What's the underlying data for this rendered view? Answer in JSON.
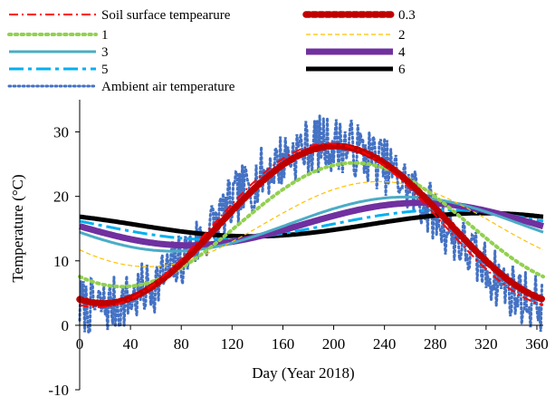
{
  "chart_data": {
    "type": "line",
    "xlabel": "Day (Year 2018)",
    "ylabel": "Temperature (°C)",
    "xlim": [
      0,
      365
    ],
    "ylim": [
      -10,
      35
    ],
    "x_ticks": [
      0,
      40,
      80,
      120,
      160,
      200,
      240,
      280,
      320,
      360
    ],
    "y_ticks": [
      -10,
      0,
      10,
      20,
      30
    ],
    "grid": false,
    "legend_position": "top",
    "series": [
      {
        "name": "Soil surface tempearure",
        "mean": 15.5,
        "amplitude": 12.7,
        "peak_day": 196,
        "color": "#ff0000",
        "style": "dashdot",
        "width": 2.0
      },
      {
        "name": "0.3",
        "mean": 15.6,
        "amplitude": 12.2,
        "peak_day": 201,
        "color": "#c00000",
        "style": "dotted-thick",
        "width": 7.5
      },
      {
        "name": "1",
        "mean": 15.6,
        "amplitude": 9.6,
        "peak_day": 216,
        "color": "#92d050",
        "style": "dotted",
        "width": 4.0
      },
      {
        "name": "2",
        "mean": 15.7,
        "amplitude": 6.6,
        "peak_day": 236,
        "color": "#ffc000",
        "style": "dashed",
        "width": 1.2
      },
      {
        "name": "3",
        "mean": 15.7,
        "amplitude": 4.2,
        "peak_day": 256,
        "color": "#4bacc6",
        "style": "solid",
        "width": 3.0
      },
      {
        "name": "4",
        "mean": 15.7,
        "amplitude": 3.3,
        "peak_day": 268,
        "color": "#7030a0",
        "style": "solid",
        "width": 7.0
      },
      {
        "name": "5",
        "mean": 15.6,
        "amplitude": 2.3,
        "peak_day": 288,
        "color": "#00b0f0",
        "style": "longdashdot",
        "width": 3.0
      },
      {
        "name": "6",
        "mean": 15.6,
        "amplitude": 1.8,
        "peak_day": 318,
        "color": "#000000",
        "style": "solid",
        "width": 5.0
      },
      {
        "name": "Ambient air temperature",
        "mean": 15.5,
        "amplitude": 12.7,
        "peak_day": 196,
        "noise": 4.5,
        "seed": 7,
        "color": "#4472c4",
        "style": "dotted",
        "width": 3.0
      }
    ]
  }
}
